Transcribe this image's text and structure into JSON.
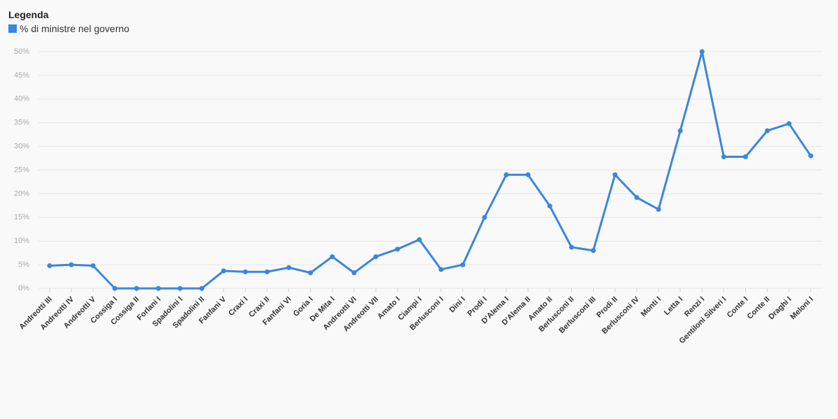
{
  "chart_data": {
    "type": "line",
    "legend_title": "Legenda",
    "categories": [
      "Andreotti III",
      "Andreotti IV",
      "Andreotti V",
      "Cossiga I",
      "Cossiga II",
      "Forlani I",
      "Spadolini I",
      "Spadolini II",
      "Fanfani V",
      "Craxi I",
      "Craxi II",
      "Fanfani VI",
      "Goria I",
      "De Mita I",
      "Andreotti VI",
      "Andreotti VII",
      "Amato I",
      "Ciampi I",
      "Berlusconi I",
      "Dini I",
      "Prodi I",
      "D'Alema I",
      "D'Alema II",
      "Amato II",
      "Berlusconi II",
      "Berlusconi III",
      "Prodi II",
      "Berlusconi IV",
      "Monti I",
      "Letta I",
      "Renzi I",
      "Gentiloni Silveri I",
      "Conte I",
      "Conte II",
      "Draghi I",
      "Meloni I"
    ],
    "series": [
      {
        "name": "% di ministre nel governo",
        "color": "#3a86e0",
        "values": [
          4.8,
          5.0,
          4.8,
          0,
          0,
          0,
          0,
          0,
          3.7,
          3.5,
          3.5,
          4.4,
          3.3,
          6.7,
          3.3,
          6.7,
          8.3,
          10.3,
          4.0,
          5.0,
          15.0,
          24.0,
          24.0,
          17.4,
          8.7,
          8.0,
          24.0,
          19.2,
          16.7,
          33.3,
          50.0,
          27.8,
          27.8,
          33.3,
          34.8,
          28.0
        ]
      }
    ],
    "ylim": [
      0,
      50
    ],
    "yticks": [
      {
        "value": 0,
        "label": "0%"
      },
      {
        "value": 5,
        "label": "5%"
      },
      {
        "value": 10,
        "label": "10%"
      },
      {
        "value": 15,
        "label": "15%"
      },
      {
        "value": 20,
        "label": "20%"
      },
      {
        "value": 25,
        "label": "25%"
      },
      {
        "value": 30,
        "label": "30%"
      },
      {
        "value": 35,
        "label": "35%"
      },
      {
        "value": 40,
        "label": "40%"
      },
      {
        "value": 45,
        "label": "45%"
      },
      {
        "value": 50,
        "label": "50%"
      }
    ],
    "grid": true,
    "legend": "top-left"
  }
}
